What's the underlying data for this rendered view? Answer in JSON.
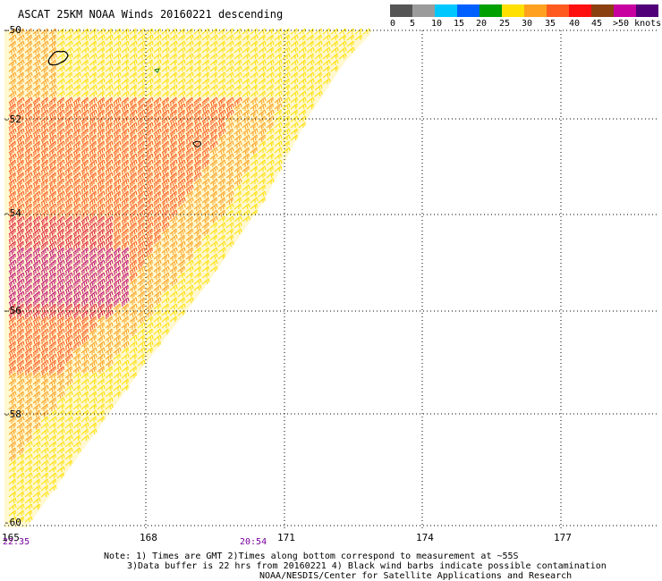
{
  "title": "ASCAT 25KM NOAA Winds 20160221 descending",
  "legend": {
    "labels": [
      "0",
      "5",
      "10",
      "15",
      "20",
      "25",
      "30",
      "35",
      "40",
      "45",
      ">50 knots"
    ],
    "colors": [
      "#555555",
      "#9b9b9b",
      "#00c8ff",
      "#0060ff",
      "#00a000",
      "#ffe000",
      "#ffa020",
      "#ff5a20",
      "#ff1010",
      "#8b4010",
      "#c800a0",
      "#500078"
    ]
  },
  "map": {
    "lon_labels": [
      "165",
      "168",
      "171",
      "174",
      "177"
    ],
    "lat_labels": [
      "-50",
      "-52",
      "-54",
      "-56",
      "-58",
      "-60"
    ],
    "times": {
      "left": "22:35",
      "center": "20:54"
    },
    "wind_colors": {
      "light": "#ffe000",
      "medium": "#ffa020",
      "strong": "#ff5a20",
      "gale": "#e02040",
      "storm": "#c0107a"
    }
  },
  "notes": {
    "line1": "Note: 1) Times are GMT 2)Times along bottom correspond to measurement at ~55S",
    "line2": "3)Data buffer is 22 hrs from 20160221 4) Black wind barbs indicate possible contamination",
    "line3": "NOAA/NESDIS/Center for Satellite Applications and Research"
  }
}
